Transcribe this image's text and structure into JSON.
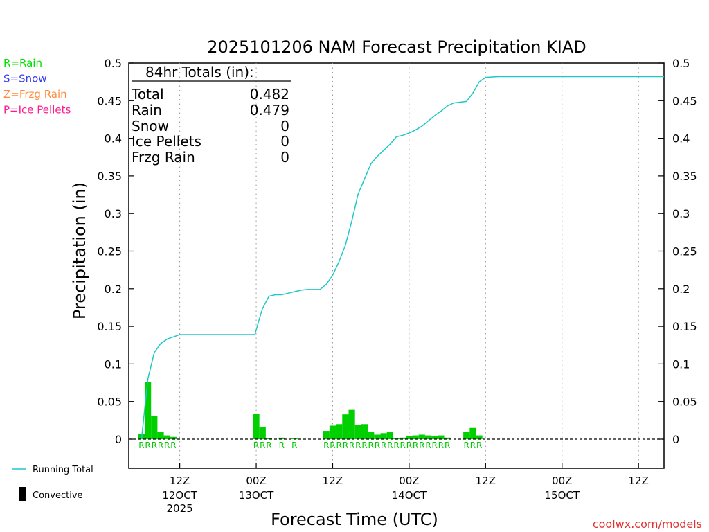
{
  "chart_data": {
    "type": "bar",
    "title": "2025101206 NAM Forecast Precipitation KIAD",
    "ylabel": "Precipitation (in)",
    "xlabel": "Forecast Time (UTC)",
    "ylim": [
      -0.04,
      0.5
    ],
    "xlim_hours": [
      -2,
      82
    ],
    "y_ticks": [
      0,
      0.05,
      0.1,
      0.15,
      0.2,
      0.25,
      0.3,
      0.35,
      0.4,
      0.45,
      0.5
    ],
    "y_tick_labels": [
      "0",
      "0.05",
      "0.1",
      "0.15",
      "0.2",
      "0.25",
      "0.3",
      "0.35",
      "0.4",
      "0.45",
      "0.5"
    ],
    "x_ticks": [
      {
        "hour": 6,
        "label": "12Z",
        "date": "12OCT",
        "year": "2025"
      },
      {
        "hour": 18,
        "label": "00Z",
        "date": "13OCT",
        "year": ""
      },
      {
        "hour": 30,
        "label": "12Z",
        "date": "",
        "year": ""
      },
      {
        "hour": 42,
        "label": "00Z",
        "date": "14OCT",
        "year": ""
      },
      {
        "hour": 54,
        "label": "12Z",
        "date": "",
        "year": ""
      },
      {
        "hour": 66,
        "label": "00Z",
        "date": "15OCT",
        "year": ""
      },
      {
        "hour": 78,
        "label": "12Z",
        "date": "",
        "year": ""
      }
    ],
    "hourly_precip": [
      {
        "hour": 0,
        "value": 0.007
      },
      {
        "hour": 1,
        "value": 0.076
      },
      {
        "hour": 2,
        "value": 0.031
      },
      {
        "hour": 3,
        "value": 0.01
      },
      {
        "hour": 4,
        "value": 0.005
      },
      {
        "hour": 5,
        "value": 0.003
      },
      {
        "hour": 18,
        "value": 0.034
      },
      {
        "hour": 19,
        "value": 0.016
      },
      {
        "hour": 20,
        "value": 0.001
      },
      {
        "hour": 22,
        "value": 0.002
      },
      {
        "hour": 24,
        "value": 0.001
      },
      {
        "hour": 29,
        "value": 0.011
      },
      {
        "hour": 30,
        "value": 0.018
      },
      {
        "hour": 31,
        "value": 0.02
      },
      {
        "hour": 32,
        "value": 0.033
      },
      {
        "hour": 33,
        "value": 0.039
      },
      {
        "hour": 34,
        "value": 0.019
      },
      {
        "hour": 35,
        "value": 0.02
      },
      {
        "hour": 36,
        "value": 0.01
      },
      {
        "hour": 37,
        "value": 0.006
      },
      {
        "hour": 38,
        "value": 0.008
      },
      {
        "hour": 39,
        "value": 0.01
      },
      {
        "hour": 40,
        "value": 0.001
      },
      {
        "hour": 41,
        "value": 0.002
      },
      {
        "hour": 42,
        "value": 0.004
      },
      {
        "hour": 43,
        "value": 0.005
      },
      {
        "hour": 44,
        "value": 0.006
      },
      {
        "hour": 45,
        "value": 0.005
      },
      {
        "hour": 46,
        "value": 0.004
      },
      {
        "hour": 47,
        "value": 0.005
      },
      {
        "hour": 48,
        "value": 0.002
      },
      {
        "hour": 51,
        "value": 0.01
      },
      {
        "hour": 52,
        "value": 0.015
      },
      {
        "hour": 53,
        "value": 0.005
      }
    ],
    "ptype_markers": [
      {
        "hour": 0,
        "label": "R"
      },
      {
        "hour": 1,
        "label": "R"
      },
      {
        "hour": 2,
        "label": "R"
      },
      {
        "hour": 3,
        "label": "R"
      },
      {
        "hour": 4,
        "label": "R"
      },
      {
        "hour": 5,
        "label": "R"
      },
      {
        "hour": 18,
        "label": "R"
      },
      {
        "hour": 19,
        "label": "R"
      },
      {
        "hour": 20,
        "label": "R"
      },
      {
        "hour": 22,
        "label": "R"
      },
      {
        "hour": 24,
        "label": "R"
      },
      {
        "hour": 29,
        "label": "R"
      },
      {
        "hour": 30,
        "label": "R"
      },
      {
        "hour": 31,
        "label": "R"
      },
      {
        "hour": 32,
        "label": "R"
      },
      {
        "hour": 33,
        "label": "R"
      },
      {
        "hour": 34,
        "label": "R"
      },
      {
        "hour": 35,
        "label": "R"
      },
      {
        "hour": 36,
        "label": "R"
      },
      {
        "hour": 37,
        "label": "R"
      },
      {
        "hour": 38,
        "label": "R"
      },
      {
        "hour": 39,
        "label": "R"
      },
      {
        "hour": 40,
        "label": "R"
      },
      {
        "hour": 41,
        "label": "R"
      },
      {
        "hour": 42,
        "label": "R"
      },
      {
        "hour": 43,
        "label": "R"
      },
      {
        "hour": 44,
        "label": "R"
      },
      {
        "hour": 45,
        "label": "R"
      },
      {
        "hour": 46,
        "label": "R"
      },
      {
        "hour": 47,
        "label": "R"
      },
      {
        "hour": 48,
        "label": "R"
      },
      {
        "hour": 51,
        "label": "R"
      },
      {
        "hour": 52,
        "label": "R"
      },
      {
        "hour": 53,
        "label": "R"
      }
    ],
    "running_total": [
      [
        0,
        0.0
      ],
      [
        1,
        0.08
      ],
      [
        2,
        0.115
      ],
      [
        3,
        0.127
      ],
      [
        4,
        0.133
      ],
      [
        5,
        0.136
      ],
      [
        6,
        0.139
      ],
      [
        17.8,
        0.139
      ],
      [
        18.5,
        0.16
      ],
      [
        19,
        0.174
      ],
      [
        20,
        0.19
      ],
      [
        21,
        0.192
      ],
      [
        22,
        0.192
      ],
      [
        23,
        0.194
      ],
      [
        24,
        0.196
      ],
      [
        25,
        0.198
      ],
      [
        26,
        0.199
      ],
      [
        28,
        0.199
      ],
      [
        29,
        0.206
      ],
      [
        30,
        0.218
      ],
      [
        31,
        0.236
      ],
      [
        32,
        0.258
      ],
      [
        33,
        0.29
      ],
      [
        34,
        0.326
      ],
      [
        35,
        0.346
      ],
      [
        36,
        0.366
      ],
      [
        37,
        0.376
      ],
      [
        38,
        0.384
      ],
      [
        39,
        0.392
      ],
      [
        40,
        0.402
      ],
      [
        41,
        0.404
      ],
      [
        42,
        0.407
      ],
      [
        43,
        0.411
      ],
      [
        44,
        0.416
      ],
      [
        45,
        0.423
      ],
      [
        46,
        0.43
      ],
      [
        47,
        0.436
      ],
      [
        48,
        0.443
      ],
      [
        49,
        0.447
      ],
      [
        50,
        0.448
      ],
      [
        51,
        0.449
      ],
      [
        52,
        0.46
      ],
      [
        53,
        0.475
      ],
      [
        54,
        0.481
      ],
      [
        56,
        0.482
      ],
      [
        82,
        0.482
      ]
    ],
    "totals": {
      "header": "84hr Totals (in):",
      "rows": [
        {
          "label": "Total",
          "value": "0.482"
        },
        {
          "label": "Rain",
          "value": "0.479"
        },
        {
          "label": "Snow",
          "value": "0"
        },
        {
          "label": "Ice Pellets",
          "value": "0"
        },
        {
          "label": "Frzg Rain",
          "value": "0"
        }
      ]
    },
    "ptype_legend": [
      {
        "label": "R=Rain",
        "color": "#00e000"
      },
      {
        "label": "S=Snow",
        "color": "#3a3af0"
      },
      {
        "label": "Z=Frzg Rain",
        "color": "#ff8c3a"
      },
      {
        "label": "P=Ice Pellets",
        "color": "#ff1a8c"
      }
    ],
    "series_legend": {
      "running_total": "Running Total",
      "convective": "Convective"
    },
    "colors": {
      "bar": "#00d000",
      "running_total": "#1ec8c8",
      "marker": "#00c800",
      "grid": "#999999",
      "credit": "#e03030"
    }
  },
  "credit": "coolwx.com/models"
}
